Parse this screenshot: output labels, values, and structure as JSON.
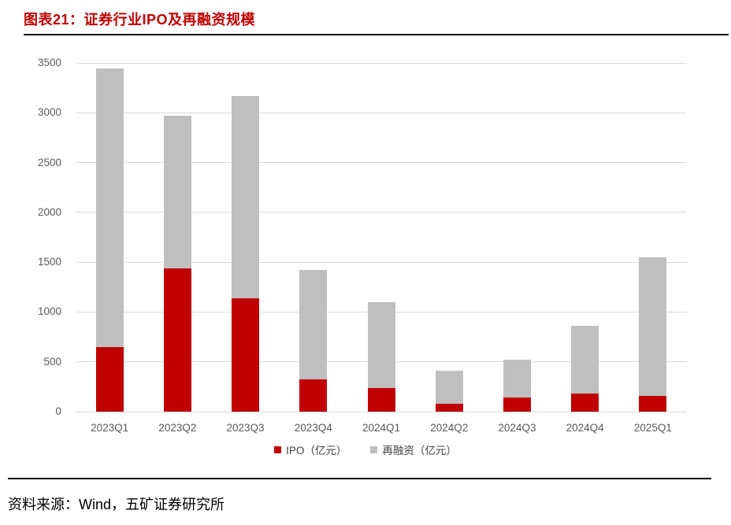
{
  "title": "图表21：证券行业IPO及再融资规模",
  "source_note": "资料来源：Wind，五矿证券研究所",
  "colors": {
    "ipo": "#C00000",
    "refinance": "#BFBFBF",
    "gridline": "#D9D9D9",
    "axis_text": "#595959",
    "legend_text": "#404040",
    "title": "#C00000"
  },
  "chart_data": {
    "type": "bar",
    "stacked": true,
    "title": "图表21：证券行业IPO及再融资规模",
    "categories": [
      "2023Q1",
      "2023Q2",
      "2023Q3",
      "2023Q4",
      "2024Q1",
      "2024Q2",
      "2024Q3",
      "2024Q4",
      "2025Q1"
    ],
    "series": [
      {
        "name": "IPO（亿元）",
        "color_key": "ipo",
        "values": [
          650,
          1440,
          1135,
          325,
          235,
          80,
          140,
          185,
          160
        ]
      },
      {
        "name": "再融资（亿元）",
        "color_key": "refinance",
        "values": [
          2795,
          1530,
          2030,
          1100,
          865,
          330,
          380,
          675,
          1385
        ]
      }
    ],
    "totals": [
      3445,
      2970,
      3165,
      1425,
      1100,
      410,
      520,
      860,
      1545
    ],
    "xlabel": "",
    "ylabel": "",
    "ylim": [
      0,
      3500
    ],
    "yticks": [
      0,
      500,
      1000,
      1500,
      2000,
      2500,
      3000,
      3500
    ],
    "grid": "horizontal",
    "legend_position": "bottom"
  }
}
